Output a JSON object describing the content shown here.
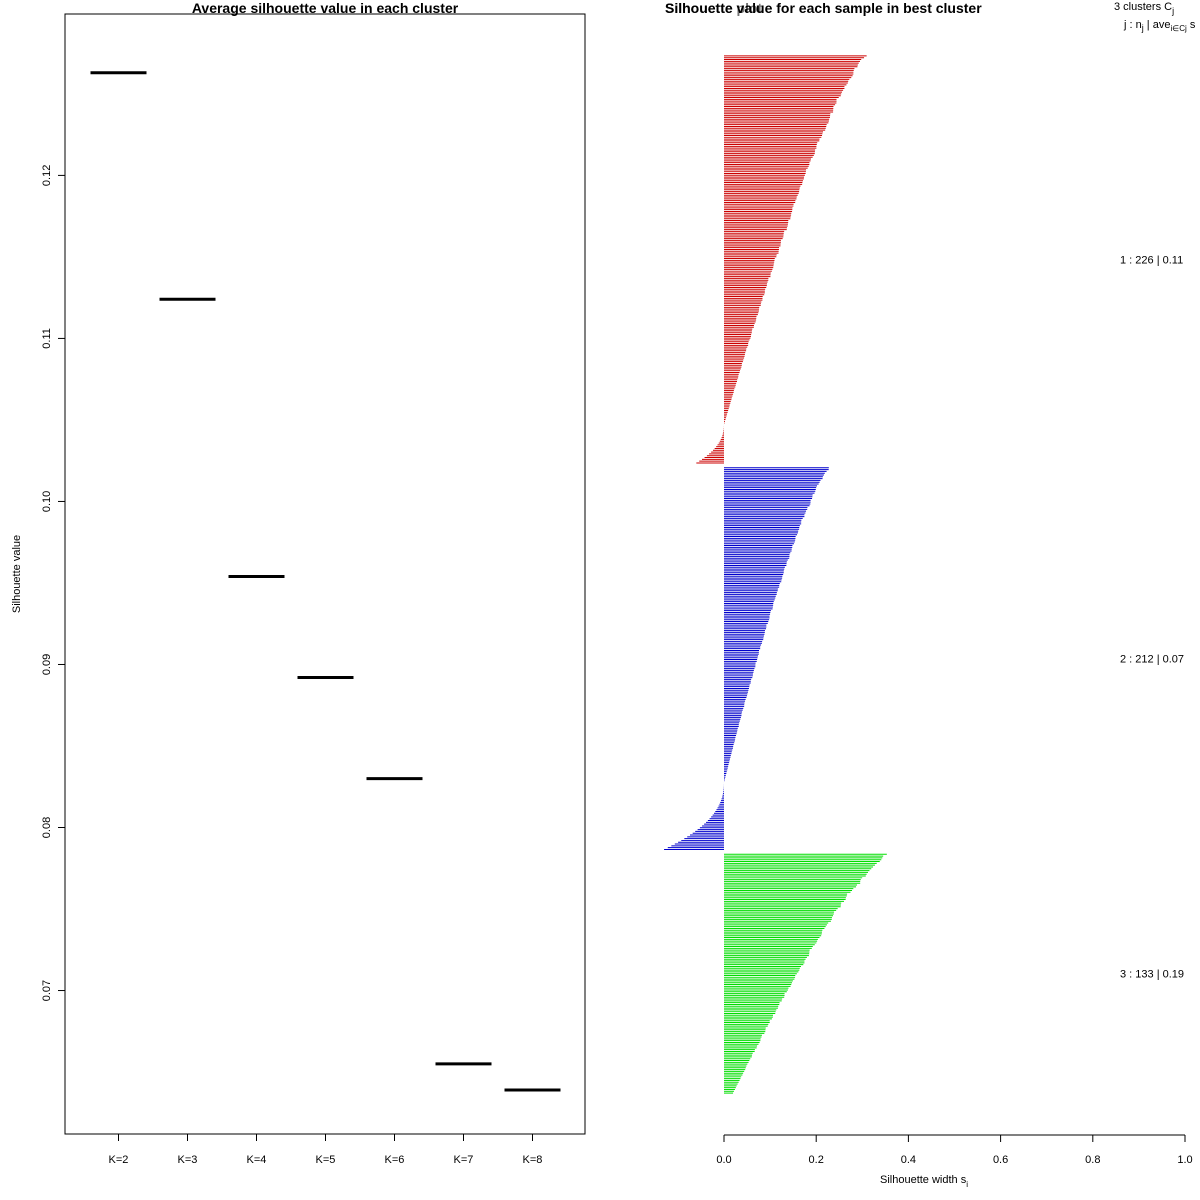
{
  "chart_data": [
    {
      "type": "scatter",
      "title": "Average silhouette value in each cluster",
      "xlabel": "",
      "ylabel": "Silhouette value",
      "categories": [
        "K=2",
        "K=3",
        "K=4",
        "K=5",
        "K=6",
        "K=7",
        "K=8"
      ],
      "values": [
        0.1263,
        0.1124,
        0.0954,
        0.0892,
        0.083,
        0.0655,
        0.0639
      ],
      "ylim": [
        0.0612,
        0.1299
      ],
      "yticks": [
        "0.07",
        "0.08",
        "0.09",
        "0.10",
        "0.11",
        "0.12"
      ],
      "grid": false
    },
    {
      "type": "bar",
      "title": "Silhouette value for each sample in best cluster",
      "overlay_title": "Silhouette plot",
      "xlabel": "Silhouette width s",
      "xlabel_subscript": "i",
      "xlim": [
        0,
        1
      ],
      "xticks": [
        "0.0",
        "0.2",
        "0.4",
        "0.6",
        "0.8",
        "1.0"
      ],
      "legend_header": {
        "line1": "3 clusters  C",
        "line1_sub": "j",
        "line2": "j :  n",
        "line2_sub1": "j",
        "line2_mid": " | ave",
        "line2_sub2": "i∈Cj",
        "line2_end": "  s"
      },
      "series": [
        {
          "name": "1",
          "label": "1 :  226  |  0.11",
          "n": 226,
          "avg": 0.11,
          "color": "#cc0000",
          "max": 0.31,
          "min": -0.06,
          "neg_count": 22
        },
        {
          "name": "2",
          "label": "2 :  212  |  0.07",
          "n": 212,
          "avg": 0.07,
          "color": "#0000cc",
          "max": 0.23,
          "min": -0.13,
          "neg_count": 38
        },
        {
          "name": "3",
          "label": "3 :  133  |  0.19",
          "n": 133,
          "avg": 0.19,
          "color": "#00dd00",
          "max": 0.36,
          "min": 0.02,
          "neg_count": 0
        }
      ]
    }
  ]
}
